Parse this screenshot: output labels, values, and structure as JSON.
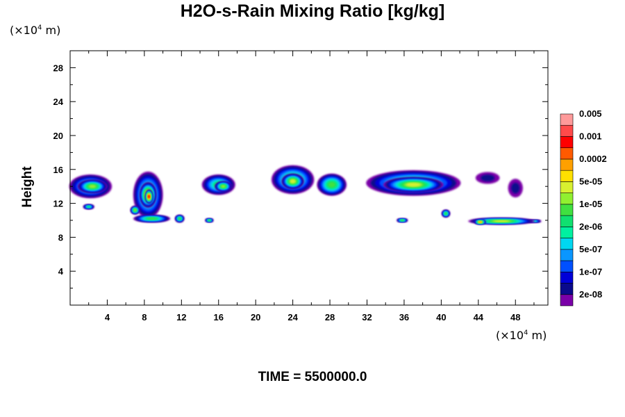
{
  "chart_data": {
    "type": "heatmap",
    "title": "H2O-s-Rain Mixing Ratio [kg/kg]",
    "ylabel": "Height",
    "y_unit_prefix": "(×10",
    "y_unit_exp": "4",
    "y_unit_suffix": " m)",
    "x_unit_prefix": "(×10",
    "x_unit_exp": "4",
    "x_unit_suffix": " m)",
    "footer": "TIME = 5500000.0",
    "xlim": [
      0,
      51.5
    ],
    "ylim": [
      0,
      30
    ],
    "x_ticks": [
      4,
      8,
      12,
      16,
      20,
      24,
      28,
      32,
      36,
      40,
      44,
      48
    ],
    "y_ticks": [
      4,
      8,
      12,
      16,
      20,
      24,
      28
    ],
    "colorbar": {
      "colors": [
        "#7a00a8",
        "#0a0a8c",
        "#0000d8",
        "#0050ff",
        "#0a96ff",
        "#00d7f0",
        "#00f0a0",
        "#10e070",
        "#40e040",
        "#90f030",
        "#d8f030",
        "#ffe000",
        "#ffa000",
        "#ff5a00",
        "#ff0000",
        "#ff4a4a",
        "#ff9a9a"
      ],
      "labels": [
        "2e-08",
        "1e-07",
        "5e-07",
        "2e-06",
        "1e-05",
        "5e-05",
        "0.0002",
        "0.001",
        "0.005"
      ]
    },
    "cells": [
      {
        "x": 2.2,
        "y": 14.0,
        "w": 4.6,
        "h": 2.8,
        "level": 7
      },
      {
        "x": 2.4,
        "y": 14.0,
        "w": 3.2,
        "h": 1.6,
        "level": 9
      },
      {
        "x": 8.4,
        "y": 13.0,
        "w": 3.2,
        "h": 5.5,
        "level": 8
      },
      {
        "x": 8.4,
        "y": 13.0,
        "w": 1.8,
        "h": 3.0,
        "level": 12
      },
      {
        "x": 8.5,
        "y": 12.8,
        "w": 0.8,
        "h": 1.6,
        "level": 14
      },
      {
        "x": 16.0,
        "y": 14.2,
        "w": 3.6,
        "h": 2.4,
        "level": 7
      },
      {
        "x": 16.5,
        "y": 14.0,
        "w": 1.8,
        "h": 1.2,
        "level": 9
      },
      {
        "x": 24.0,
        "y": 14.8,
        "w": 4.6,
        "h": 3.4,
        "level": 8
      },
      {
        "x": 24.0,
        "y": 14.6,
        "w": 2.4,
        "h": 1.8,
        "level": 10
      },
      {
        "x": 28.2,
        "y": 14.2,
        "w": 3.2,
        "h": 2.6,
        "level": 8
      },
      {
        "x": 37.0,
        "y": 14.4,
        "w": 10.2,
        "h": 3.0,
        "level": 8
      },
      {
        "x": 37.0,
        "y": 14.2,
        "w": 6.5,
        "h": 1.8,
        "level": 10
      },
      {
        "x": 45.0,
        "y": 15.0,
        "w": 2.6,
        "h": 1.4,
        "level": 1
      },
      {
        "x": 48.0,
        "y": 13.8,
        "w": 1.6,
        "h": 2.2,
        "level": 1
      },
      {
        "x": 2.0,
        "y": 11.6,
        "w": 1.2,
        "h": 0.6,
        "level": 7
      },
      {
        "x": 7.0,
        "y": 11.2,
        "w": 1.0,
        "h": 1.0,
        "level": 9
      },
      {
        "x": 8.8,
        "y": 10.2,
        "w": 4.0,
        "h": 0.9,
        "level": 8
      },
      {
        "x": 11.8,
        "y": 10.2,
        "w": 1.0,
        "h": 0.9,
        "level": 8
      },
      {
        "x": 15.0,
        "y": 10.0,
        "w": 0.9,
        "h": 0.5,
        "level": 8
      },
      {
        "x": 40.5,
        "y": 10.8,
        "w": 0.9,
        "h": 0.9,
        "level": 8
      },
      {
        "x": 35.8,
        "y": 10.0,
        "w": 1.2,
        "h": 0.5,
        "level": 8
      },
      {
        "x": 46.5,
        "y": 9.9,
        "w": 7.2,
        "h": 0.8,
        "level": 10
      },
      {
        "x": 44.2,
        "y": 9.8,
        "w": 1.2,
        "h": 0.6,
        "level": 12
      },
      {
        "x": 50.0,
        "y": 9.9,
        "w": 1.6,
        "h": 0.4,
        "level": 6
      }
    ]
  }
}
